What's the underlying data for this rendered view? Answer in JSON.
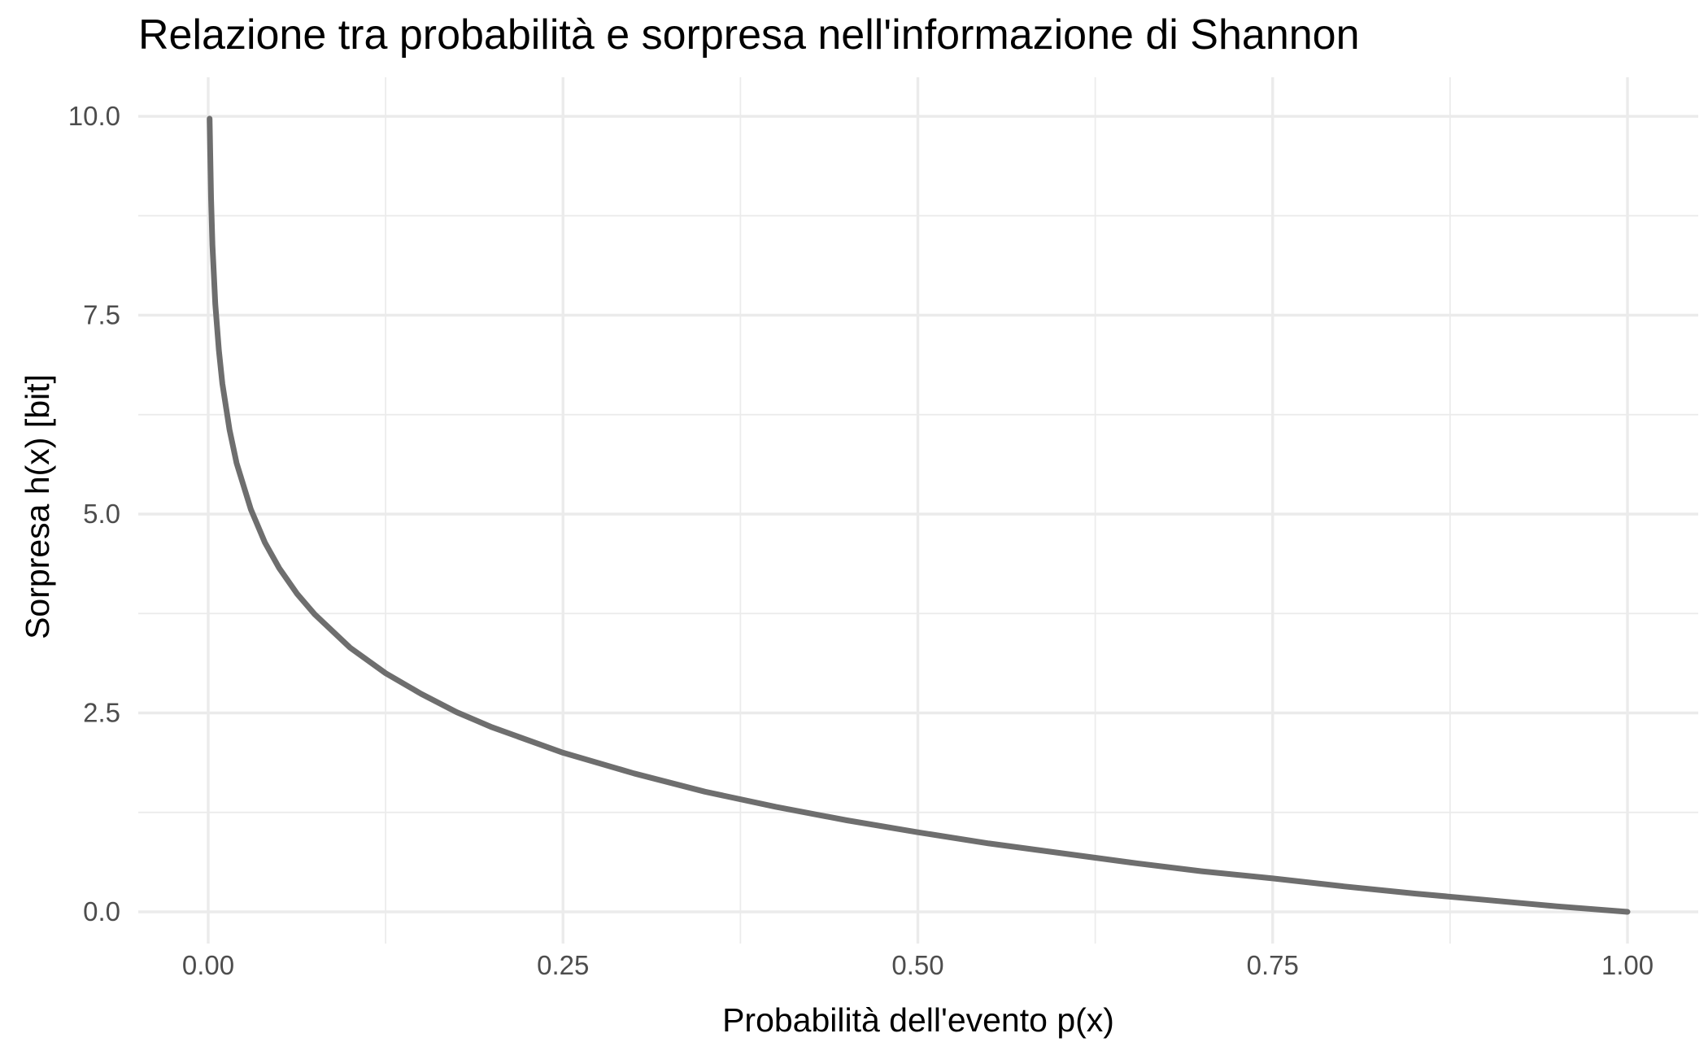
{
  "chart_data": {
    "type": "line",
    "title": "Relazione tra probabilità e sorpresa nell'informazione di Shannon",
    "xlabel": "Probabilità dell'evento p(x)",
    "ylabel": "Sorpresa h(x) [bit]",
    "xlim": [
      0,
      1
    ],
    "ylim": [
      0,
      10
    ],
    "x_ticks": [
      0,
      0.25,
      0.5,
      0.75,
      1
    ],
    "x_tick_labels": [
      "0.00",
      "0.25",
      "0.50",
      "0.75",
      "1.00"
    ],
    "y_ticks": [
      0,
      2.5,
      5,
      7.5,
      10
    ],
    "y_tick_labels": [
      "0.0",
      "2.5",
      "5.0",
      "7.5",
      "10.0"
    ],
    "grid": true,
    "legend": "none",
    "series": [
      {
        "color": "#6e6e6e",
        "x": [
          0.001,
          0.002,
          0.003,
          0.005,
          0.0075,
          0.01,
          0.015,
          0.02,
          0.03,
          0.04,
          0.05,
          0.0625,
          0.075,
          0.1,
          0.125,
          0.15,
          0.175,
          0.2,
          0.25,
          0.3,
          0.35,
          0.4,
          0.45,
          0.5,
          0.55,
          0.6,
          0.65,
          0.7,
          0.75,
          0.8,
          0.85,
          0.9,
          0.95,
          1.0
        ],
        "y": [
          9.97,
          8.97,
          8.38,
          7.64,
          7.06,
          6.64,
          6.06,
          5.64,
          5.06,
          4.64,
          4.32,
          4.0,
          3.74,
          3.32,
          3.0,
          2.74,
          2.51,
          2.32,
          2.0,
          1.74,
          1.51,
          1.32,
          1.15,
          1.0,
          0.86,
          0.74,
          0.62,
          0.51,
          0.42,
          0.32,
          0.23,
          0.15,
          0.07,
          0.0
        ]
      }
    ]
  }
}
